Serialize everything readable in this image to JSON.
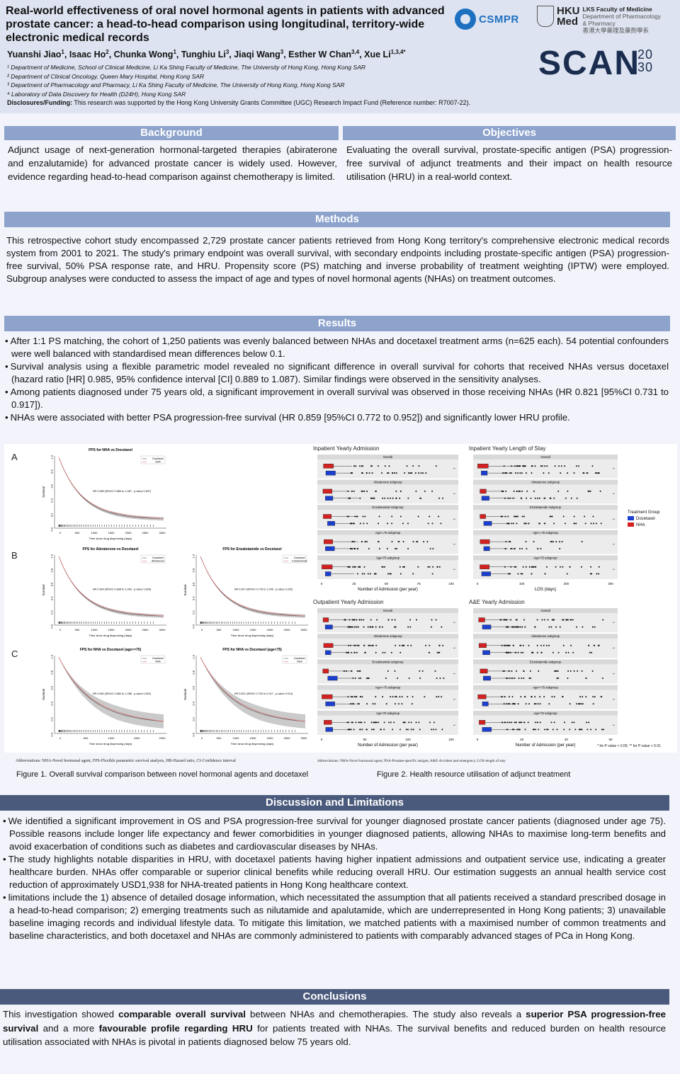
{
  "header": {
    "title": "Real-world effectiveness of oral novel hormonal agents in patients with advanced prostate cancer: a head-to-head comparison using longitudinal, territory-wide electronic medical records",
    "authors": [
      {
        "name": "Yuanshi Jiao",
        "sup": "1"
      },
      {
        "name": "Isaac Ho",
        "sup": "2"
      },
      {
        "name": "Chunka Wong",
        "sup": "1"
      },
      {
        "name": "Tunghiu Li",
        "sup": "3"
      },
      {
        "name": "Jiaqi Wang",
        "sup": "3"
      },
      {
        "name": "Esther W Chan",
        "sup": "3,4"
      },
      {
        "name": "Xue Li",
        "sup": "1,3,4*"
      }
    ],
    "affiliations": [
      "¹ Department of Medicine, School of Clinical Medicine, Li Ka Shing Faculty of Medicine, The University of Hong Kong, Hong Kong SAR",
      "² Department of Clinical Oncology, Queen Mary Hospital, Hong Kong SAR",
      "³ Department of Pharmacology and Pharmacy, Li Ka Shing Faculty of Medicine, The University of Hong Kong, Hong Kong SAR",
      "⁴ Laboratory of Data Discovery for Health (D24H), Hong Kong SAR"
    ],
    "disclosure_label": "Disclosures/Funding:",
    "disclosure_text": " This research was supported by the Hong Kong University Grants Committee (UGC) Research Impact Fund (Reference number: R7007-22).",
    "logos": {
      "cspmr": "CSMPR",
      "hku_big": "HKU",
      "hku_big2": "Med",
      "hku_line1": "LKS Faculty of Medicine",
      "hku_line2": "Department of Pharmacology",
      "hku_line3": "& Pharmacy",
      "hku_line4": "香港大學藥理及藥劑學系",
      "scan": "SCAN",
      "scan_year_top": "20",
      "scan_year_bottom": "30"
    }
  },
  "background": {
    "heading": "Background",
    "text": "Adjunct usage of next-generation hormonal-targeted therapies (abiraterone and enzalutamide) for advanced prostate cancer is widely used. However, evidence regarding head-to-head comparison against chemotherapy is limited."
  },
  "objectives": {
    "heading": "Objectives",
    "text": "Evaluating the overall survival, prostate-specific antigen (PSA) progression-free survival of adjunct treatments and their impact on health resource utilisation (HRU) in a real-world context."
  },
  "methods": {
    "heading": "Methods",
    "text": "This retrospective cohort study encompassed 2,729 prostate cancer patients retrieved from Hong Kong territory's comprehensive electronic medical records system from 2001 to 2021. The study's primary endpoint was overall survival, with secondary endpoints including prostate-specific antigen (PSA) progression-free survival, 50% PSA response rate, and HRU. Propensity score (PS) matching and inverse probability of treatment weighting (IPTW) were employed. Subgroup analyses were conducted to assess the impact of age and types of novel hormonal agents (NHAs) on treatment outcomes."
  },
  "results": {
    "heading": "Results",
    "bullets": [
      "After 1:1 PS matching, the cohort of 1,250 patients was evenly balanced between NHAs and docetaxel treatment arms (n=625 each). 54 potential confounders were well balanced with standardised mean differences below 0.1.",
      "Survival analysis using a flexible parametric model revealed no significant difference in overall survival for cohorts that received NHAs versus docetaxel (hazard ratio [HR] 0.985, 95% confidence interval [CI] 0.889 to 1.087). Similar findings were observed in the sensitivity analyses.",
      "Among patients diagnosed under 75 years old, a significant improvement in overall survival was observed in those receiving NHAs (HR 0.821 [95%CI 0.731 to 0.917]).",
      "NHAs were associated with better PSA progression-free survival (HR 0.859 [95%CI 0.772 to 0.952]) and significantly lower HRU profile."
    ]
  },
  "figure1": {
    "letters": [
      "A",
      "B",
      "C"
    ],
    "plots": [
      {
        "title": "FPS for NHA vs Docetaxel",
        "note": "HR 0.985 (95%CI 0.889 to 1.087 , p-value 0.837)",
        "legend": [
          "Docetaxel",
          "NHA"
        ],
        "ylabel": "Survival",
        "xlabel": "Time since drug dispensing (days)",
        "x_ticks": [
          "0",
          "500",
          "1000",
          "1500",
          "2000",
          "2500",
          "3000"
        ],
        "y_ticks": [
          "0.0",
          "0.2",
          "0.4",
          "0.6",
          "0.8",
          "1.0"
        ]
      },
      {
        "title": "FPS for Abiraterone vs Docetaxel",
        "note": "HR 0.964 (95%CI 0.838 to 1.090 , p-value 0.603)",
        "legend": [
          "Docetaxel",
          "Abiraterone"
        ],
        "ylabel": "Survival",
        "xlabel": "Time since drug dispensing (days)",
        "x_ticks": [
          "0",
          "500",
          "1000",
          "1500",
          "2000",
          "2500",
          "3000"
        ],
        "y_ticks": [
          "0.0",
          "0.2",
          "0.4",
          "0.6",
          "0.8",
          "1.0"
        ]
      },
      {
        "title": "FPS for Enzalutamide vs Docetaxel",
        "note": "HR 0.907 (95%CI 0.778 to 1.049 , p-value 0.202)",
        "legend": [
          "Docetaxel",
          "Enzalutamide"
        ],
        "ylabel": "Survival",
        "xlabel": "Time since drug dispensing (days)",
        "x_ticks": [
          "0",
          "500",
          "1000",
          "1500",
          "2000",
          "2500",
          "3000"
        ],
        "y_ticks": [
          "0.0",
          "0.2",
          "0.4",
          "0.6",
          "0.8",
          "1.0"
        ]
      },
      {
        "title": "FPS for NHA vs Docetaxel (age>=75)",
        "note": "HR 0.960 (95%CI 0.682 to 1.288 , p-value 0.822)",
        "legend": [
          "Docetaxel",
          "NHA"
        ],
        "ylabel": "Survival",
        "xlabel": "Time since drug dispensing (days)",
        "x_ticks": [
          "0",
          "500",
          "1000",
          "1500",
          "2000"
        ],
        "y_ticks": [
          "0.0",
          "0.2",
          "0.4",
          "0.6",
          "0.8",
          "1.0"
        ]
      },
      {
        "title": "FPS for NHA vs Docetaxel (age<75)",
        "note": "HR 0.821 (95%CI 0.731 to 0.917 , p-value 0.014)",
        "legend": [
          "Docetaxel",
          "NHA"
        ],
        "ylabel": "Survival",
        "xlabel": "Time since drug dispensing (days)",
        "x_ticks": [
          "0",
          "500",
          "1000",
          "1500",
          "2000",
          "2500",
          "3000"
        ],
        "y_ticks": [
          "0.0",
          "0.2",
          "0.4",
          "0.6",
          "0.8",
          "1.0"
        ]
      }
    ],
    "abbreviations": "Abbreviations: NHA-Novel hormonal agent, FPS-Flexible parametric survival analysis, HR-Hazard ratio, CI-Confidence interval",
    "caption": "Figure 1. Overall survival comparison between novel hormonal agents and docetaxel"
  },
  "figure2": {
    "panels": [
      {
        "heading": "Inpatient Yearly Admission",
        "xlabel": "Number of Admission (per year)",
        "x_ticks": [
          "0",
          "25",
          "50",
          "75",
          "100"
        ]
      },
      {
        "heading": "Inpatient Yearly Length of Stay",
        "xlabel": "LOS (days)",
        "x_ticks": [
          "0",
          "100",
          "200",
          "300"
        ]
      },
      {
        "heading": "Outpatient Yearly Admission",
        "xlabel": "Number of Admission (per year)",
        "x_ticks": [
          "0",
          "50",
          "100",
          "150"
        ]
      },
      {
        "heading": "A&E Yearly Admission",
        "xlabel": "Number of Admission (per year)",
        "x_ticks": [
          "0",
          "20",
          "40",
          "60"
        ]
      }
    ],
    "strips": [
      "Overall",
      "Abiraterone subgroup",
      "Enzalutamide subgroup",
      "Age>=75 subgroup",
      "Age<75 subgroup"
    ],
    "legend_title": "Treatment Group",
    "legend_items": [
      {
        "label": "Docetaxel",
        "color": "#1a3fd1"
      },
      {
        "label": "NHA",
        "color": "#d42020"
      }
    ],
    "p_note": "* for P value < 0.05; ** for P value < 0.01",
    "abbreviations": "Abbreviations: NHA-Novel hormonal agent; PSA-Prostate-specific antigen; A&E-Accident and emergency; LOS-length of stay",
    "caption": "Figure 2. Health resource utilisation of adjunct treatment"
  },
  "discussion": {
    "heading": "Discussion and Limitations",
    "bullets": [
      "We identified a significant improvement in OS and PSA progression-free survival for younger diagnosed prostate cancer patients (diagnosed under age 75). Possible reasons include longer life expectancy and fewer comorbidities in younger diagnosed patients, allowing NHAs to maximise long-term benefits and avoid exacerbation of conditions such as diabetes and cardiovascular diseases by NHAs.",
      "The study highlights notable disparities in HRU, with docetaxel patients having higher inpatient admissions and outpatient service use, indicating a greater healthcare burden. NHAs offer comparable or superior clinical benefits while reducing overall HRU. Our estimation suggests an annual health service cost reduction of approximately USD1,938 for NHA-treated patients in Hong Kong healthcare context.",
      "limitations include the 1) absence of detailed dosage information, which necessitated the assumption that all patients received a standard prescribed dosage in a head-to-head comparison; 2) emerging treatments such as nilutamide and apalutamide, which are underrepresented in Hong Kong patients; 3) unavailable baseline imaging records and individual lifestyle data. To mitigate this limitation, we matched patients with a maximised number of common treatments and baseline characteristics, and both docetaxel and NHAs are commonly administered to patients with comparably advanced stages of PCa in Hong Kong."
    ]
  },
  "conclusions": {
    "heading": "Conclusions",
    "parts": [
      {
        "t": "This investigation showed ",
        "b": false
      },
      {
        "t": "comparable overall survival",
        "b": true
      },
      {
        "t": " between NHAs and chemotherapies. The study also reveals a ",
        "b": false
      },
      {
        "t": "superior PSA progression-free survival",
        "b": true
      },
      {
        "t": " and a more ",
        "b": false
      },
      {
        "t": "favourable profile regarding HRU",
        "b": true
      },
      {
        "t": " for patients treated with NHAs. The survival benefits and reduced burden on health resource utilisation associated with NHAs is pivotal in patients diagnosed below 75 years old.",
        "b": false
      }
    ]
  },
  "colors": {
    "section_dark": "#4a5a7c",
    "section_light": "#8da3cc",
    "header_bg": "#dde3f0",
    "docetaxel": "#1a3fd1",
    "nha": "#d42020"
  }
}
